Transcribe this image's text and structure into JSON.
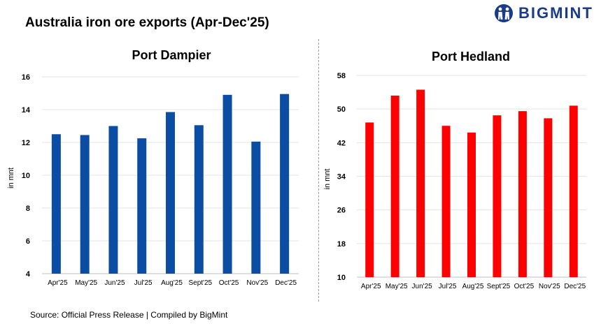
{
  "header": {
    "title": "Australia iron ore exports (Apr-Dec'25)",
    "logo_text": "BIGMINT"
  },
  "footer": {
    "source": "Source:  Official Press Release  | Compiled  by BigMint"
  },
  "colors": {
    "dampier": "#0b4da2",
    "hedland": "#ff0000",
    "logo": "#1a3a8c"
  },
  "chart_data": [
    {
      "type": "bar",
      "title": "Port Dampier",
      "ylabel": "in mnt",
      "xlabel": "",
      "categories": [
        "Apr'25",
        "May'25",
        "Jun'25",
        "Jul'25",
        "Aug'25",
        "Sept'25",
        "Oct'25",
        "Nov'25",
        "Dec'25"
      ],
      "values": [
        12.5,
        12.45,
        13.0,
        12.25,
        13.85,
        13.05,
        14.9,
        12.05,
        14.95
      ],
      "ylim": [
        4,
        16
      ],
      "yticks": [
        4,
        6,
        8,
        10,
        12,
        14,
        16
      ],
      "grid": true,
      "color": "#0b4da2"
    },
    {
      "type": "bar",
      "title": "Port Hedland",
      "ylabel": "in mnt",
      "xlabel": "",
      "categories": [
        "Apr'25",
        "May'25",
        "Jun'25",
        "Jul'25",
        "Aug'25",
        "Sept'25",
        "Oct'25",
        "Nov'25",
        "Dec'25"
      ],
      "values": [
        46.8,
        53.2,
        54.6,
        46.0,
        44.4,
        48.5,
        49.5,
        47.8,
        50.8
      ],
      "ylim": [
        10,
        58
      ],
      "yticks": [
        10,
        18,
        26,
        34,
        42,
        50,
        58
      ],
      "grid": true,
      "color": "#ff0000"
    }
  ]
}
